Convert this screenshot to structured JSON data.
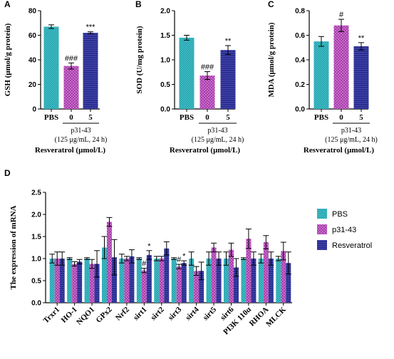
{
  "colors": {
    "PBS": "#21a3ad",
    "p31-43": "#a63fa8",
    "Resveratrol": "#2b2e8f"
  },
  "chart_data": [
    {
      "panel": "A",
      "type": "bar",
      "ylabel": "GSH (μmol/g protein)",
      "ylim": [
        0,
        80
      ],
      "yticks": [
        0,
        20,
        40,
        60,
        80
      ],
      "categories": [
        "PBS",
        "0",
        "5"
      ],
      "series_keys": [
        "PBS",
        "p31-43",
        "Resveratrol"
      ],
      "values": [
        67,
        35,
        62
      ],
      "errors": [
        1.5,
        2.5,
        0.8
      ],
      "sig": [
        "",
        "###",
        "***"
      ],
      "group_label": "p31-43",
      "group_sub": "(125 μg/mL, 24 h)",
      "xlabel": "Resveratrol (μmol/L)"
    },
    {
      "panel": "B",
      "type": "bar",
      "ylabel": "SOD (U/mg protein)",
      "ylim": [
        0,
        2.0
      ],
      "yticks": [
        0.0,
        0.5,
        1.0,
        1.5,
        2.0
      ],
      "categories": [
        "PBS",
        "0",
        "5"
      ],
      "series_keys": [
        "PBS",
        "p31-43",
        "Resveratrol"
      ],
      "values": [
        1.45,
        0.68,
        1.2
      ],
      "errors": [
        0.05,
        0.08,
        0.09
      ],
      "sig": [
        "",
        "###",
        "**"
      ],
      "group_label": "p31-43",
      "group_sub": "(125 μg/mL, 24 h)",
      "xlabel": "Resveratrol (μmol/L)"
    },
    {
      "panel": "C",
      "type": "bar",
      "ylabel": "MDA (μmol/g protein)",
      "ylim": [
        0,
        0.8
      ],
      "yticks": [
        0.0,
        0.2,
        0.4,
        0.6,
        0.8
      ],
      "categories": [
        "PBS",
        "0",
        "5"
      ],
      "series_keys": [
        "PBS",
        "p31-43",
        "Resveratrol"
      ],
      "values": [
        0.55,
        0.68,
        0.51
      ],
      "errors": [
        0.04,
        0.05,
        0.03
      ],
      "sig": [
        "",
        "#",
        "**"
      ],
      "group_label": "p31-43",
      "group_sub": "(125 μg/mL, 24 h)",
      "xlabel": "Resveratrol (μmol/L)"
    },
    {
      "panel": "D",
      "type": "bar",
      "ylabel": "The expression of mRNA",
      "ylim": [
        0,
        2.5
      ],
      "yticks": [
        0.0,
        0.5,
        1.0,
        1.5,
        2.0,
        2.5
      ],
      "categories": [
        "Trxr1",
        "HO-1",
        "NQO1",
        "GPx2",
        "Nrf2",
        "sirt1",
        "sirt2",
        "sirt3",
        "sirt4",
        "sirt5",
        "sirt6",
        "PI3K 110α",
        "RHOA",
        "MLCK"
      ],
      "legend_position": "right",
      "series": [
        {
          "name": "PBS",
          "values": [
            1.0,
            1.0,
            1.0,
            1.25,
            1.0,
            1.0,
            1.0,
            1.0,
            1.0,
            1.0,
            1.0,
            1.0,
            1.0,
            1.0
          ],
          "errors": [
            0.1,
            0.02,
            0.02,
            0.25,
            0.1,
            0.02,
            0.05,
            0.02,
            0.15,
            0.15,
            0.15,
            0.02,
            0.1,
            0.05
          ]
        },
        {
          "name": "p31-43",
          "values": [
            1.0,
            0.88,
            0.88,
            1.83,
            1.0,
            0.73,
            1.0,
            0.82,
            0.72,
            1.25,
            1.2,
            1.45,
            1.37,
            1.17
          ],
          "errors": [
            0.15,
            0.05,
            0.1,
            0.1,
            0.05,
            0.05,
            0.05,
            0.05,
            0.1,
            0.1,
            0.15,
            0.22,
            0.15,
            0.2
          ]
        },
        {
          "name": "Resveratrol",
          "values": [
            1.0,
            0.93,
            0.88,
            1.03,
            1.05,
            1.08,
            1.23,
            0.9,
            0.72,
            1.0,
            0.8,
            1.0,
            1.0,
            0.9
          ],
          "errors": [
            0.15,
            0.05,
            0.3,
            0.4,
            0.15,
            0.1,
            0.15,
            0.05,
            0.2,
            0.15,
            0.2,
            0.15,
            0.15,
            0.25
          ]
        }
      ],
      "sig_labels": [
        {
          "category": "sirt1",
          "series": "p31-43",
          "text": "#"
        },
        {
          "category": "sirt1",
          "series": "Resveratrol",
          "text": "*"
        },
        {
          "category": "sirt3",
          "series": "p31-43",
          "text": "#"
        },
        {
          "category": "sirt3",
          "series": "Resveratrol",
          "text": "*"
        }
      ]
    }
  ]
}
